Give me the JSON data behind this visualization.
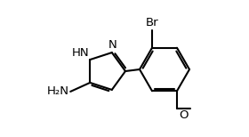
{
  "background_color": "#ffffff",
  "line_color": "#000000",
  "line_width": 1.5,
  "font_size": 9.5,
  "figsize": [
    2.8,
    1.54
  ],
  "dpi": 100,
  "xlim": [
    0.3,
    3.1
  ],
  "ylim": [
    0.1,
    1.25
  ]
}
